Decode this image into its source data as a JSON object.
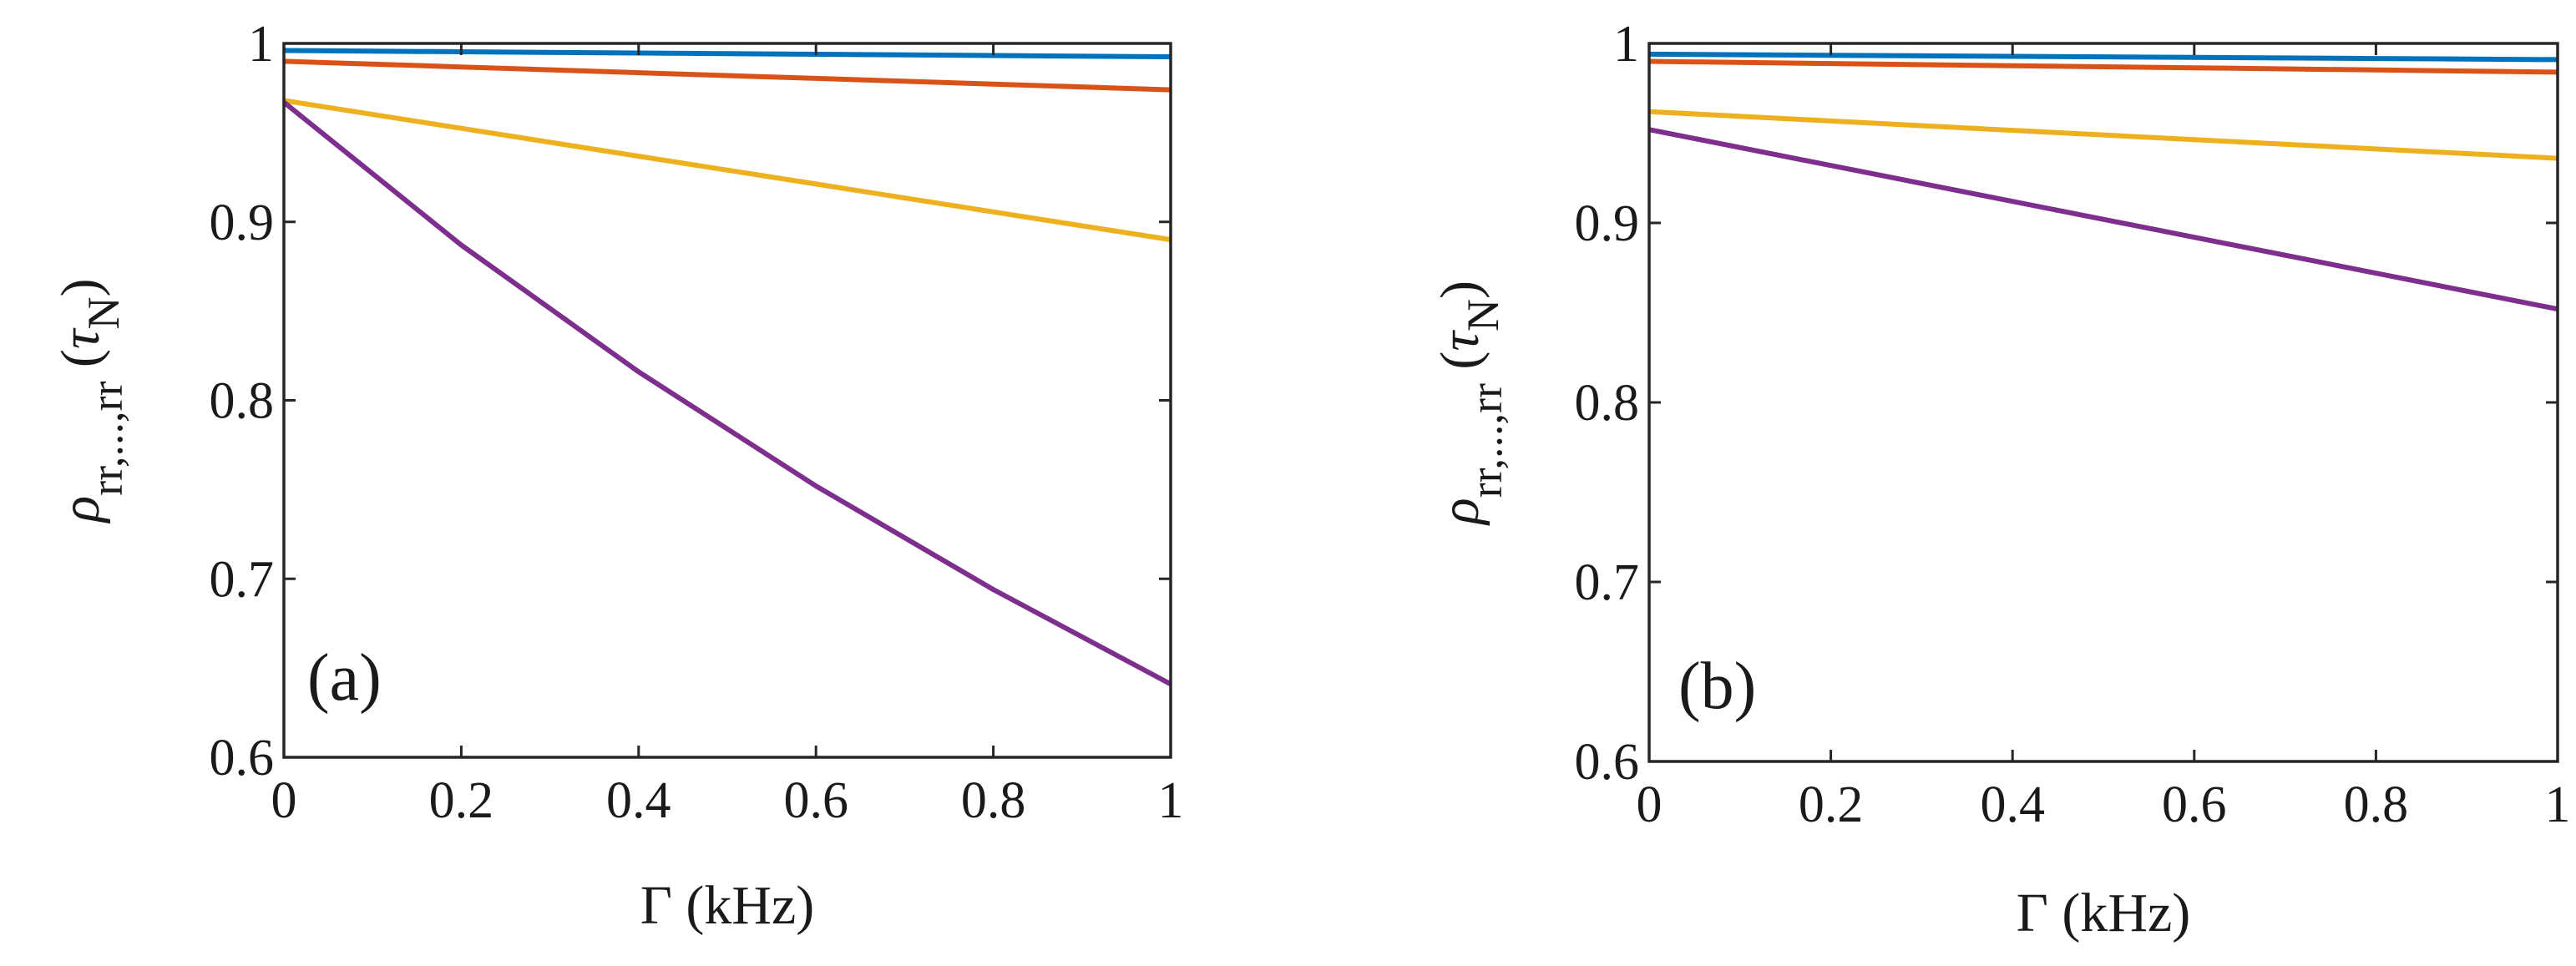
{
  "chart_data": [
    {
      "type": "line",
      "panel": "(a)",
      "xlabel": "Γ (kHz)",
      "ylabel": {
        "main": "ρ",
        "sub": "rr,...,rr",
        "arg_open": "(",
        "tau": "τ",
        "tau_sub": "N",
        "arg_close": ")"
      },
      "xlim": [
        0,
        1
      ],
      "ylim": [
        0.6,
        1
      ],
      "xticks": [
        0,
        0.2,
        0.4,
        0.6,
        0.8,
        1
      ],
      "xtick_labels": [
        "0",
        "0.2",
        "0.4",
        "0.6",
        "0.8",
        "1"
      ],
      "yticks": [
        0.6,
        0.7,
        0.8,
        0.9,
        1
      ],
      "ytick_labels": [
        "0.6",
        "0.7",
        "0.8",
        "0.9",
        "1"
      ],
      "x": [
        0,
        0.2,
        0.4,
        0.6,
        0.8,
        1
      ],
      "series": [
        {
          "name": "blue",
          "color": "#0072BD",
          "values": [
            0.996,
            0.9953,
            0.9946,
            0.9939,
            0.9932,
            0.9925
          ]
        },
        {
          "name": "orange",
          "color": "#D95319",
          "values": [
            0.99,
            0.9868,
            0.9836,
            0.9804,
            0.9772,
            0.974
          ]
        },
        {
          "name": "yellow",
          "color": "#EDB120",
          "values": [
            0.968,
            0.9524,
            0.9368,
            0.9212,
            0.9056,
            0.89
          ]
        },
        {
          "name": "purple",
          "color": "#7E2F8E",
          "values": [
            0.967,
            0.887,
            0.816,
            0.752,
            0.694,
            0.641
          ]
        }
      ]
    },
    {
      "type": "line",
      "panel": "(b)",
      "xlabel": "Γ (kHz)",
      "ylabel": {
        "main": "ρ",
        "sub": "rr,...,rr",
        "arg_open": "(",
        "tau": "τ",
        "tau_sub": "N",
        "arg_close": ")"
      },
      "xlim": [
        0,
        1
      ],
      "ylim": [
        0.6,
        1
      ],
      "xticks": [
        0,
        0.2,
        0.4,
        0.6,
        0.8,
        1
      ],
      "xtick_labels": [
        "0",
        "0.2",
        "0.4",
        "0.6",
        "0.8",
        "1"
      ],
      "yticks": [
        0.6,
        0.7,
        0.8,
        0.9,
        1
      ],
      "ytick_labels": [
        "0.6",
        "0.7",
        "0.8",
        "0.9",
        "1"
      ],
      "x": [
        0,
        0.2,
        0.4,
        0.6,
        0.8,
        1
      ],
      "series": [
        {
          "name": "blue",
          "color": "#0072BD",
          "values": [
            0.994,
            0.9934,
            0.9928,
            0.9922,
            0.9916,
            0.991
          ]
        },
        {
          "name": "orange",
          "color": "#D95319",
          "values": [
            0.99,
            0.9888,
            0.9876,
            0.9864,
            0.9852,
            0.984
          ]
        },
        {
          "name": "yellow",
          "color": "#EDB120",
          "values": [
            0.962,
            0.9568,
            0.9516,
            0.9464,
            0.9412,
            0.936
          ]
        },
        {
          "name": "purple",
          "color": "#7E2F8E",
          "values": [
            0.952,
            0.932,
            0.912,
            0.892,
            0.872,
            0.852
          ]
        }
      ]
    }
  ]
}
